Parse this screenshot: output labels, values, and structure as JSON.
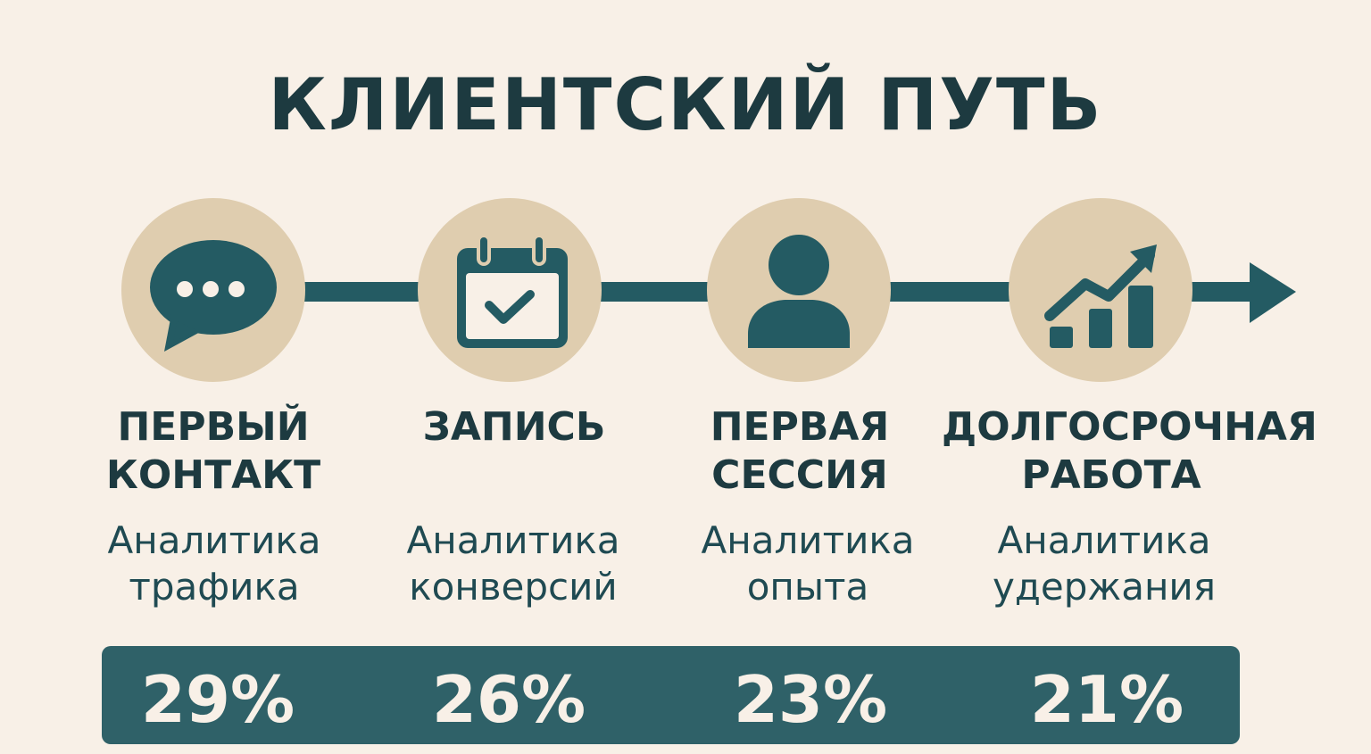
{
  "title": "КЛИЕНТСКИЙ ПУТЬ",
  "colors": {
    "background": "#f8f0e7",
    "circle": "#dfcdaf",
    "accent": "#245b63",
    "text": "#1d3a40"
  },
  "stages": [
    {
      "name": "ПЕРВЫЙ\nКОНТАКТ",
      "subtitle": "Аналитика\nтрафика",
      "value": "29%",
      "icon": "chat-bubble-icon"
    },
    {
      "name": "ЗАПИСЬ",
      "subtitle": "Аналитика\nконверсий",
      "value": "26%",
      "icon": "calendar-check-icon"
    },
    {
      "name": "ПЕРВАЯ\nСЕССИЯ",
      "subtitle": "Аналитика\nопыта",
      "value": "23%",
      "icon": "person-icon"
    },
    {
      "name": "ДОЛГОСРОЧНАЯ\nРАБОТА",
      "subtitle": "Аналитика\nудержания",
      "value": "21%",
      "icon": "growth-chart-icon"
    }
  ]
}
